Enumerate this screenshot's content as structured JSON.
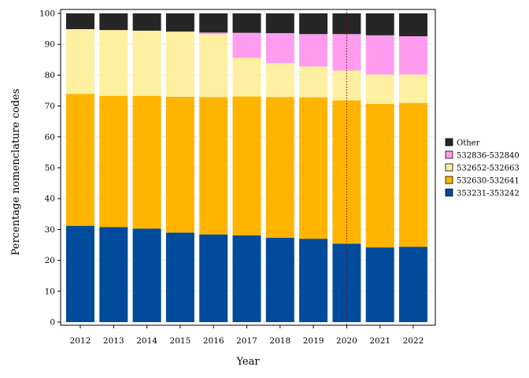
{
  "chart_data": {
    "type": "bar",
    "stacked": true,
    "title": "",
    "xlabel": "Year",
    "ylabel": "Percentage nomenclature codes",
    "ylim": [
      0,
      100
    ],
    "yticks": [
      0,
      10,
      20,
      30,
      40,
      50,
      60,
      70,
      80,
      90,
      100
    ],
    "grid": true,
    "legend_position": "right",
    "categories": [
      "2012",
      "2013",
      "2014",
      "2015",
      "2016",
      "2017",
      "2018",
      "2019",
      "2020",
      "2021",
      "2022"
    ],
    "reference_line": {
      "x": "2020",
      "style": "dotted",
      "color": "#8b0000"
    },
    "series": [
      {
        "name": "353231-353242",
        "color": "#004b9b",
        "values": [
          31.2,
          30.8,
          30.3,
          29.0,
          28.4,
          28.1,
          27.3,
          27.0,
          25.4,
          24.2,
          24.4
        ]
      },
      {
        "name": "532630-532641",
        "color": "#ffb400",
        "values": [
          42.7,
          42.5,
          43.0,
          44.0,
          44.5,
          45.0,
          45.6,
          45.8,
          46.4,
          46.5,
          46.6
        ]
      },
      {
        "name": "532652-532663",
        "color": "#fdf0a0",
        "values": [
          21.0,
          21.3,
          21.1,
          21.1,
          20.4,
          12.5,
          11.0,
          10.0,
          9.7,
          9.5,
          9.2
        ]
      },
      {
        "name": "532836-532840",
        "color": "#ff9cf0",
        "values": [
          0,
          0,
          0,
          0,
          0.5,
          8.1,
          9.7,
          10.5,
          11.8,
          12.7,
          12.4
        ]
      },
      {
        "name": "Other",
        "color": "#262626",
        "values": [
          5.1,
          5.4,
          5.6,
          5.9,
          6.2,
          6.3,
          6.4,
          6.7,
          6.7,
          7.1,
          7.4
        ]
      }
    ],
    "legend_order": [
      "Other",
      "532836-532840",
      "532652-532663",
      "532630-532641",
      "353231-353242"
    ]
  }
}
